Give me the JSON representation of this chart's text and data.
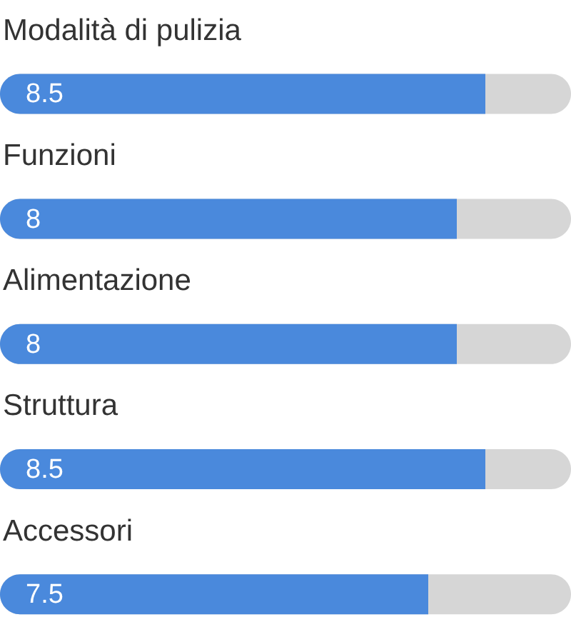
{
  "chart_data": {
    "type": "bar",
    "orientation": "horizontal",
    "categories": [
      "Modalità di pulizia",
      "Funzioni",
      "Alimentazione",
      "Struttura",
      "Accessori"
    ],
    "values": [
      8.5,
      8,
      8,
      8.5,
      7.5
    ],
    "color": "#4a89dc",
    "xlim": [
      0,
      10
    ],
    "tick_labels": false,
    "grid": false,
    "data_labels": true
  }
}
